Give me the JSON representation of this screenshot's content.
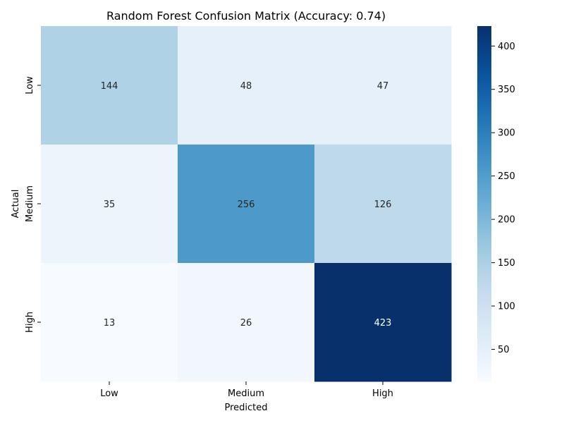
{
  "chart_data": {
    "type": "heatmap",
    "title": "Random Forest Confusion Matrix (Accuracy: 0.74)",
    "xlabel": "Predicted",
    "ylabel": "Actual",
    "x_categories": [
      "Low",
      "Medium",
      "High"
    ],
    "y_categories": [
      "Low",
      "Medium",
      "High"
    ],
    "values": [
      [
        144,
        48,
        47
      ],
      [
        35,
        256,
        126
      ],
      [
        13,
        26,
        423
      ]
    ],
    "colormap": "Blues",
    "color_range": [
      13,
      423
    ],
    "colorbar_ticks": [
      50,
      100,
      150,
      200,
      250,
      300,
      350,
      400
    ],
    "grid": false
  }
}
